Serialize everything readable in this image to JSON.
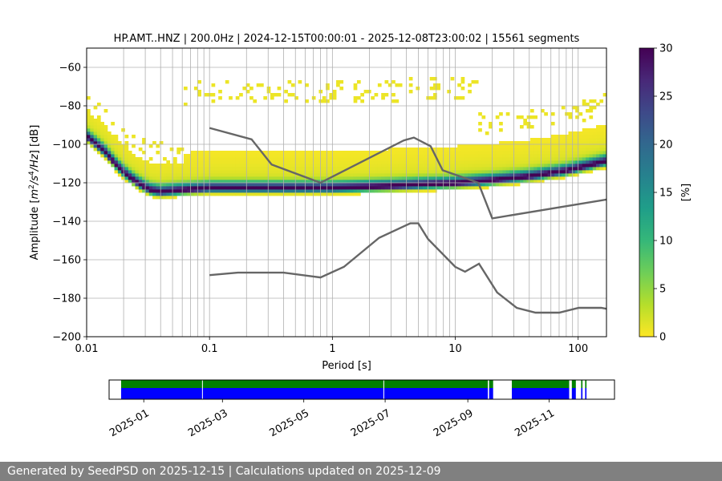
{
  "chart_data": [
    {
      "type": "heatmap",
      "title": "HP.AMT..HNZ | 200.0Hz | 2024-12-15T00:00:01 - 2025-12-08T23:00:02 | 15561 segments",
      "xlabel": "Period [s]",
      "ylabel_main": "Amplitude [",
      "ylabel_unit_m": "m",
      "ylabel_sup2": "2",
      "ylabel_unit_s": "/s",
      "ylabel_sup4": "4",
      "ylabel_unit_hz": "/Hz",
      "ylabel_tail": "] [dB]",
      "x_scale": "log",
      "xlim": [
        0.01,
        170
      ],
      "ylim": [
        -200,
        -50
      ],
      "x_ticks": [
        {
          "v": 0.01,
          "label": "0.01"
        },
        {
          "v": 0.1,
          "label": "0.1"
        },
        {
          "v": 1,
          "label": "1"
        },
        {
          "v": 10,
          "label": "10"
        },
        {
          "v": 100,
          "label": "100"
        }
      ],
      "y_ticks": [
        {
          "v": -60,
          "label": "−60"
        },
        {
          "v": -80,
          "label": "−80"
        },
        {
          "v": -100,
          "label": "−100"
        },
        {
          "v": -120,
          "label": "−120"
        },
        {
          "v": -140,
          "label": "−140"
        },
        {
          "v": -160,
          "label": "−160"
        },
        {
          "v": -180,
          "label": "−180"
        },
        {
          "v": -200,
          "label": "−200"
        }
      ],
      "grid": true,
      "colorbar": {
        "label": "[%]",
        "range": [
          0,
          30
        ],
        "ticks": [
          {
            "v": 0,
            "label": "0"
          },
          {
            "v": 5,
            "label": "5"
          },
          {
            "v": 10,
            "label": "10"
          },
          {
            "v": 15,
            "label": "15"
          },
          {
            "v": 20,
            "label": "20"
          },
          {
            "v": 25,
            "label": "25"
          },
          {
            "v": 30,
            "label": "30"
          }
        ],
        "colormap": [
          "#fde725",
          "#b5de2b",
          "#6ece58",
          "#35b779",
          "#1f9e89",
          "#26828e",
          "#31688e",
          "#3e4989",
          "#482878",
          "#440154"
        ]
      },
      "mode_curve": [
        [
          0.01,
          -96
        ],
        [
          0.014,
          -104
        ],
        [
          0.018,
          -112
        ],
        [
          0.022,
          -117
        ],
        [
          0.027,
          -121
        ],
        [
          0.033,
          -124
        ],
        [
          0.04,
          -125
        ],
        [
          0.06,
          -124
        ],
        [
          0.1,
          -123
        ],
        [
          0.2,
          -123
        ],
        [
          0.5,
          -123
        ],
        [
          1,
          -123
        ],
        [
          3,
          -122
        ],
        [
          6,
          -121
        ],
        [
          10,
          -120.5
        ],
        [
          20,
          -119
        ],
        [
          40,
          -117
        ],
        [
          80,
          -114
        ],
        [
          170,
          -109
        ]
      ],
      "noise_models": [
        {
          "points": [
            [
              0.1,
              -91.5
            ],
            [
              0.22,
              -97.4
            ],
            [
              0.32,
              -110.5
            ],
            [
              0.8,
              -120
            ],
            [
              3.8,
              -98
            ],
            [
              4.6,
              -96.5
            ],
            [
              6.3,
              -101
            ],
            [
              7.9,
              -113.5
            ],
            [
              15.4,
              -120
            ],
            [
              20,
              -138.5
            ],
            [
              170,
              -128.7
            ]
          ]
        },
        {
          "points": [
            [
              0.1,
              -168
            ],
            [
              0.17,
              -166.7
            ],
            [
              0.4,
              -166.7
            ],
            [
              0.8,
              -169.2
            ],
            [
              1.24,
              -163.7
            ],
            [
              2.4,
              -148.6
            ],
            [
              4.3,
              -141.1
            ],
            [
              5,
              -141.1
            ],
            [
              6,
              -149.2
            ],
            [
              10,
              -163.7
            ],
            [
              12,
              -166.2
            ],
            [
              15.6,
              -162.1
            ],
            [
              21.9,
              -177
            ],
            [
              31.6,
              -185
            ],
            [
              45,
              -187.5
            ],
            [
              70,
              -187.5
            ],
            [
              101,
              -185
            ],
            [
              154,
              -185
            ],
            [
              170,
              -185.5
            ]
          ]
        }
      ]
    },
    {
      "type": "timeline",
      "x_ticks": [
        {
          "date": "2025-01-01",
          "label": "2025-01"
        },
        {
          "date": "2025-03-01",
          "label": "2025-03"
        },
        {
          "date": "2025-05-01",
          "label": "2025-05"
        },
        {
          "date": "2025-07-01",
          "label": "2025-07"
        },
        {
          "date": "2025-09-01",
          "label": "2025-09"
        },
        {
          "date": "2025-11-01",
          "label": "2025-11"
        }
      ],
      "xlim": [
        "2024-12-06",
        "2025-12-20"
      ],
      "colors": {
        "green": "#008000",
        "blue": "#0000ff"
      },
      "green_spans": [
        [
          "2024-12-15",
          "2025-09-16"
        ],
        [
          "2025-09-17",
          "2025-09-20"
        ],
        [
          "2025-10-04",
          "2025-11-16"
        ],
        [
          "2025-11-18",
          "2025-11-21"
        ],
        [
          "2025-11-25",
          "2025-11-26"
        ],
        [
          "2025-11-28",
          "2025-11-29"
        ]
      ],
      "blue_spans": [
        [
          "2024-12-15",
          "2025-09-16"
        ],
        [
          "2025-09-17",
          "2025-09-20"
        ],
        [
          "2025-10-04",
          "2025-11-16"
        ],
        [
          "2025-11-18",
          "2025-11-21"
        ],
        [
          "2025-11-25",
          "2025-11-26"
        ],
        [
          "2025-11-28",
          "2025-11-29"
        ]
      ],
      "gap_markers": [
        "2025-02-14",
        "2025-06-30"
      ]
    }
  ],
  "footer": {
    "text": "Generated by SeedPSD on 2025-12-15 | Calculations updated on 2025-12-09"
  }
}
